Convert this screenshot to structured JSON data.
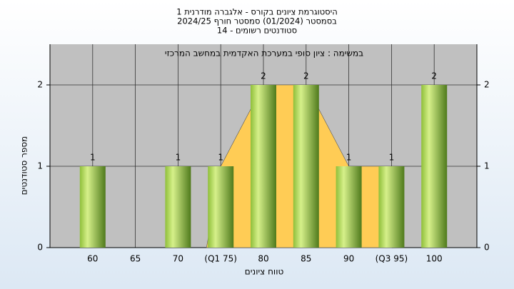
{
  "chart_data": {
    "type": "bar",
    "title": "היסטוגרמת ציונים בקורס - אלגברה מודרנית 1",
    "subtitle": "בסמסטר  (01/2024)  סמסטר חורף 2024/25",
    "subtitle2": "סטודנטים רשומים - 14",
    "annotation": "במשימה : ציון סופי במערכת האקדמית במחשב המרכזי",
    "x_label": "טווח ציונים",
    "y_label": "מספר סטודנטים",
    "categories": [
      "60",
      "65",
      "70",
      "(Q1 75)",
      "80",
      "85",
      "90",
      "(Q3 95)",
      "100"
    ],
    "series": [
      {
        "color": "#9ccc3c",
        "values": [
          1,
          0,
          1,
          1,
          2,
          2,
          1,
          1,
          2
        ]
      },
      {
        "type": "area",
        "color": "#ffcc55",
        "values": [
          null,
          null,
          null,
          1,
          2,
          2,
          1,
          1,
          null
        ]
      }
    ],
    "ylim": [
      0,
      2.5
    ],
    "yticks": [
      0,
      1,
      2
    ],
    "grid": true
  }
}
